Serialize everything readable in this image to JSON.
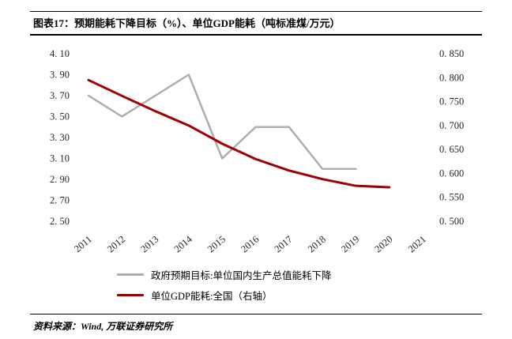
{
  "header": {
    "title": "图表17：预期能耗下降目标（%）、单位GDP能耗（吨标准煤/万元）"
  },
  "footer": {
    "source": "资料来源：Wind, 万联证券研究所"
  },
  "legend": [
    {
      "label": "政府预期目标:单位国内生产总值能耗下降",
      "color": "#ADADAD",
      "thickness": 2.5
    },
    {
      "label": "单位GDP能耗:全国（右轴）",
      "color": "#A00000",
      "thickness": 3
    }
  ],
  "chart_data": {
    "type": "line",
    "title": "预期能耗下降目标（%）、单位GDP能耗（吨标准煤/万元）",
    "x": [
      2011,
      2012,
      2013,
      2014,
      2015,
      2016,
      2017,
      2018,
      2019,
      2020,
      2021
    ],
    "xlabel": "",
    "left_axis": {
      "label": "预期能耗下降目标（%）",
      "min": 2.5,
      "max": 4.1,
      "ticks": [
        "4. 10",
        "3. 90",
        "3. 70",
        "3. 50",
        "3. 30",
        "3. 10",
        "2. 90",
        "2. 70",
        "2. 50"
      ]
    },
    "right_axis": {
      "label": "单位GDP能耗（吨标准煤/万元）",
      "min": 0.5,
      "max": 0.85,
      "ticks": [
        "0. 850",
        "0. 800",
        "0. 750",
        "0. 700",
        "0. 650",
        "0. 600",
        "0. 550",
        "0. 500"
      ]
    },
    "grid": false,
    "legend_position": "bottom",
    "series": [
      {
        "name": "政府预期目标:单位国内生产总值能耗下降",
        "axis": "left",
        "color": "#ADADAD",
        "stroke_width": 2.5,
        "x": [
          2011,
          2012,
          2013,
          2014,
          2015,
          2016,
          2017,
          2018,
          2019
        ],
        "values": [
          3.7,
          3.5,
          3.7,
          3.9,
          3.1,
          3.4,
          3.4,
          3.0,
          3.0
        ]
      },
      {
        "name": "单位GDP能耗:全国（右轴）",
        "axis": "right",
        "color": "#A00000",
        "stroke_width": 3,
        "x": [
          2011,
          2012,
          2013,
          2014,
          2015,
          2016,
          2017,
          2018,
          2019,
          2020
        ],
        "values": [
          0.795,
          0.762,
          0.73,
          0.7,
          0.662,
          0.63,
          0.606,
          0.588,
          0.574,
          0.571
        ]
      }
    ]
  }
}
